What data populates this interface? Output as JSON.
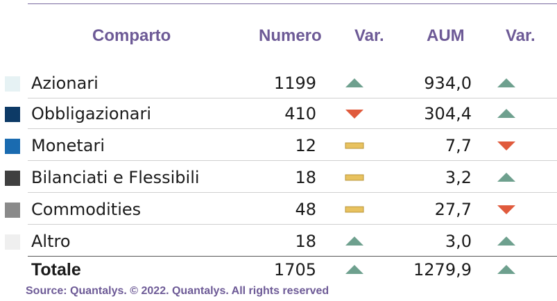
{
  "header": {
    "comparto": "Comparto",
    "numero": "Numero",
    "var1": "Var.",
    "aum": "AUM",
    "var2": "Var."
  },
  "rows": [
    {
      "name": "Azionari",
      "numero": "1199",
      "var_numero": "up",
      "aum": "934,0",
      "var_aum": "up",
      "swatch": "#e6f2f4"
    },
    {
      "name": "Obbligazionari",
      "numero": "410",
      "var_numero": "down",
      "aum": "304,4",
      "var_aum": "up",
      "swatch": "#0d3a66"
    },
    {
      "name": "Monetari",
      "numero": "12",
      "var_numero": "flat",
      "aum": "7,7",
      "var_aum": "down",
      "swatch": "#1a6bb0"
    },
    {
      "name": "Bilanciati e Flessibili",
      "numero": "18",
      "var_numero": "flat",
      "aum": "3,2",
      "var_aum": "up",
      "swatch": "#404040"
    },
    {
      "name": "Commodities",
      "numero": "48",
      "var_numero": "flat",
      "aum": "27,7",
      "var_aum": "down",
      "swatch": "#8a8a8a"
    },
    {
      "name": "Altro",
      "numero": "18",
      "var_numero": "up",
      "aum": "3,0",
      "var_aum": "up",
      "swatch": "#efefef"
    }
  ],
  "total": {
    "name": "Totale",
    "numero": "1705",
    "var_numero": "up",
    "aum": "1279,9",
    "var_aum": "up"
  },
  "source": "Source: Quantalys. © 2022. Quantalys. All rights reserved",
  "colors": {
    "accent": "#6d5a96",
    "up": "#6ea08e",
    "down": "#e05a3c",
    "flat": "#e8c25f",
    "flat_border": "#b8943a"
  }
}
